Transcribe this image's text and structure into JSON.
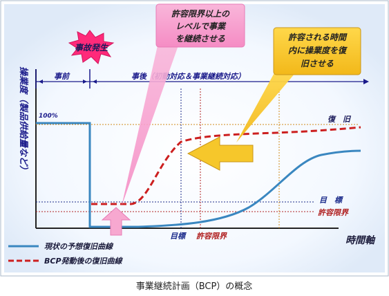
{
  "title_caption": "事業継続計画（BCP）の概念",
  "colors": {
    "current_curve": "#3a87c0",
    "bcp_curve": "#cc1f1f",
    "pink_callout": "#f7a8d0",
    "yellow_callout": "#f6c72b",
    "incident_burst": "#ff2a7a",
    "target_line": "#1a2a8a",
    "tolerance_line": "#b02020",
    "recovery_line": "#d08a1a",
    "axis_text": "#1a1a8a"
  },
  "incident": {
    "label": "事故発生"
  },
  "phases": {
    "before": "事前",
    "after": "事後（初動対応＆事業継続対応）"
  },
  "callouts": {
    "pink": {
      "lines": [
        "許容限界以上の",
        "レベルで事業",
        "を継続させる"
      ]
    },
    "yellow": {
      "lines": [
        "許容される時間",
        "内に操業度を復",
        "旧させる"
      ]
    }
  },
  "axes": {
    "y_label": "操業度（製品供給量など）",
    "x_label": "時間軸",
    "y_100": "100%"
  },
  "levels": {
    "recovery": "復　旧",
    "target": "目　標",
    "tolerance": "許容限界"
  },
  "time_markers": {
    "target": "目標",
    "tolerance": "許容限界"
  },
  "legend": [
    {
      "label": "現状の予想復旧曲線",
      "style": "solid"
    },
    {
      "label": "BCP発動後の復旧曲線",
      "style": "dashed"
    }
  ]
}
